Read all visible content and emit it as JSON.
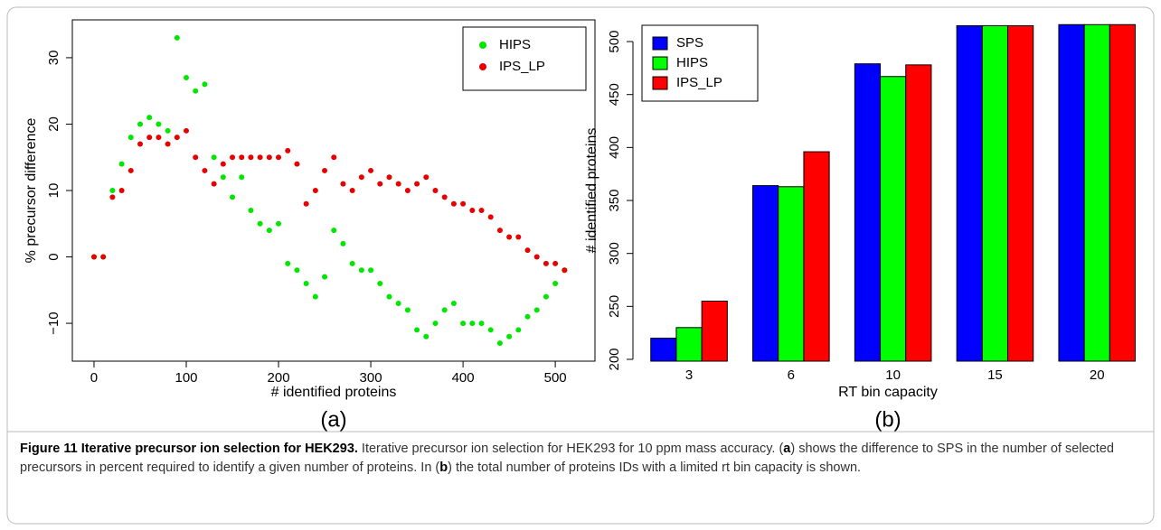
{
  "chart_data": [
    {
      "type": "scatter",
      "panel_label": "(a)",
      "x_label": "# identified proteins",
      "y_label": "% precursor difference",
      "x": [
        0,
        10,
        20,
        30,
        40,
        50,
        60,
        70,
        80,
        90,
        100,
        110,
        120,
        130,
        140,
        150,
        160,
        170,
        180,
        190,
        200,
        210,
        220,
        230,
        240,
        250,
        260,
        270,
        280,
        290,
        300,
        310,
        320,
        330,
        340,
        350,
        360,
        370,
        380,
        390,
        400,
        410,
        420,
        430,
        440,
        450,
        460,
        470,
        480,
        490,
        500,
        510
      ],
      "series": [
        {
          "name": "HIPS",
          "color": "#00e600",
          "values": [
            0,
            0,
            10,
            14,
            18,
            20,
            21,
            20,
            19,
            33,
            27,
            25,
            26,
            15,
            12,
            9,
            12,
            7,
            5,
            4,
            5,
            -1,
            -2,
            -4,
            -6,
            -3,
            4,
            2,
            -1,
            -2,
            -2,
            -4,
            -6,
            -7,
            -8,
            -11,
            -12,
            -10,
            -8,
            -7,
            -10,
            -10,
            -10,
            -11,
            -13,
            -12,
            -11,
            -9,
            -8,
            -6,
            -4,
            -2
          ]
        },
        {
          "name": "IPS_LP",
          "color": "#e60000",
          "values": [
            0,
            0,
            9,
            10,
            13,
            17,
            18,
            18,
            17,
            18,
            19,
            15,
            13,
            11,
            14,
            15,
            15,
            15,
            15,
            15,
            15,
            16,
            14,
            8,
            10,
            13,
            15,
            11,
            10,
            12,
            13,
            11,
            12,
            11,
            10,
            11,
            12,
            10,
            9,
            8,
            8,
            7,
            7,
            6,
            4,
            3,
            3,
            1,
            0,
            -1,
            -1,
            -2
          ]
        }
      ],
      "xlim": [
        -23.5,
        543
      ],
      "ylim": [
        -15.7,
        35.7
      ],
      "xticks": [
        0,
        100,
        200,
        300,
        400,
        500
      ],
      "yticks": [
        {
          "value": -10,
          "label": "−10"
        },
        0,
        10,
        20,
        30
      ],
      "legend": "top-right"
    },
    {
      "type": "bar",
      "panel_label": "(b)",
      "x_label": "RT bin capacity",
      "y_label": "# identified proteins",
      "categories": [
        "3",
        "6",
        "10",
        "15",
        "20"
      ],
      "series": [
        {
          "name": "SPS",
          "color": "#0000ff",
          "values": [
            220,
            364,
            479,
            515,
            516
          ]
        },
        {
          "name": "HIPS",
          "color": "#00ff00",
          "values": [
            230,
            363,
            467,
            515,
            516
          ]
        },
        {
          "name": "IPS_LP",
          "color": "#ff0000",
          "values": [
            255,
            396,
            478,
            515,
            516
          ]
        }
      ],
      "ylim": [
        198.3,
        520.5
      ],
      "yticks": [
        200,
        250,
        300,
        350,
        400,
        450,
        500
      ],
      "legend": "top-left"
    }
  ],
  "caption": {
    "title": "Figure 11 Iterative precursor ion selection for HEK293.",
    "segments": [
      " Iterative precursor ion selection for HEK293 for 10 ppm mass accuracy. (",
      "a",
      ") shows the difference to SPS in the number of selected precursors in percent required to identify a given number of proteins. In (",
      "b",
      ") the total number of proteins IDs with a limited rt bin capacity is shown."
    ]
  }
}
